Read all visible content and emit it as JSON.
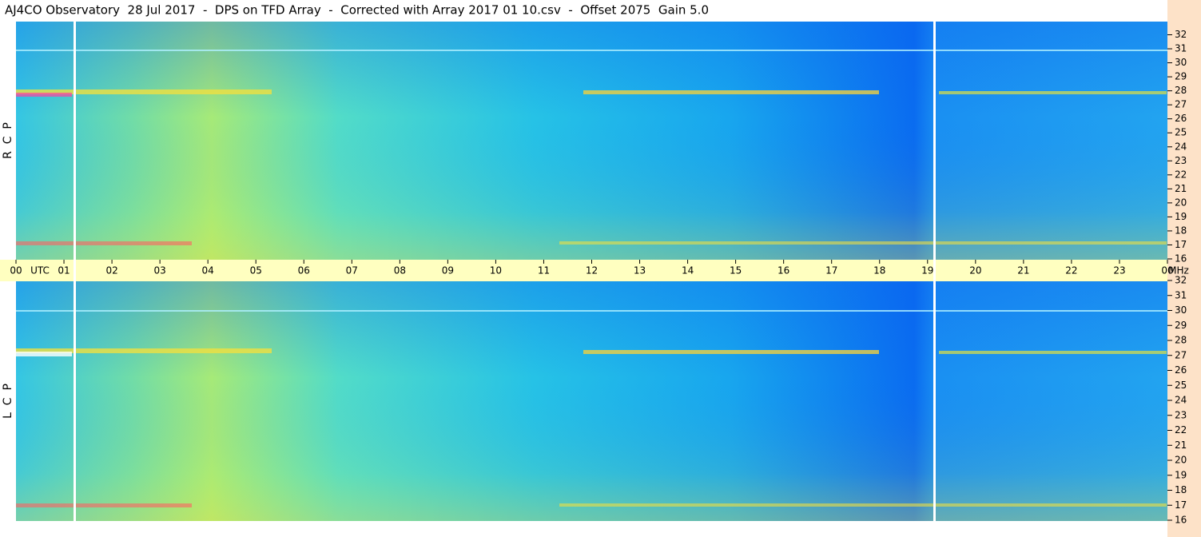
{
  "chart_data": {
    "type": "spectrogram",
    "title": "AJ4CO Observatory  28 Jul 2017  -  DPS on TFD Array  -  Corrected with Array 2017 01 10.csv  -  Offset 2075  Gain 5.0",
    "x_label": "UTC",
    "y_unit": "MHz",
    "xlim": [
      0,
      24
    ],
    "xticks": [
      {
        "value": 0,
        "label": "00"
      },
      {
        "value": 1,
        "label": "01"
      },
      {
        "value": 2,
        "label": "02"
      },
      {
        "value": 3,
        "label": "03"
      },
      {
        "value": 4,
        "label": "04"
      },
      {
        "value": 5,
        "label": "05"
      },
      {
        "value": 6,
        "label": "06"
      },
      {
        "value": 7,
        "label": "07"
      },
      {
        "value": 8,
        "label": "08"
      },
      {
        "value": 9,
        "label": "09"
      },
      10,
      11,
      12,
      13,
      14,
      15,
      16,
      17,
      18,
      19,
      20,
      21,
      22,
      23,
      {
        "value": 24,
        "label": "00"
      }
    ],
    "panels": [
      {
        "label": "R  C  P",
        "ylim": [
          16,
          33
        ],
        "yticks": [
          16,
          17,
          18,
          19,
          20,
          21,
          22,
          23,
          24,
          25,
          26,
          27,
          28,
          29,
          30,
          31,
          32
        ]
      },
      {
        "label": "L  C  P",
        "ylim": [
          16,
          32
        ],
        "yticks": [
          16,
          17,
          18,
          19,
          20,
          21,
          22,
          23,
          24,
          25,
          26,
          27,
          28,
          29,
          30,
          31,
          32
        ]
      }
    ]
  }
}
